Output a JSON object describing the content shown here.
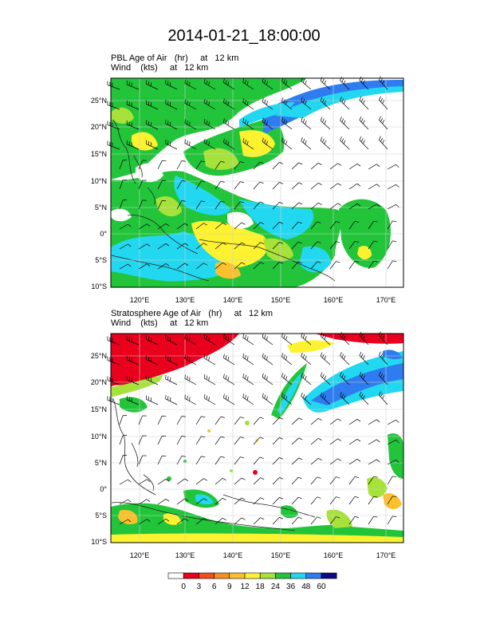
{
  "title": "2014-01-21_18:00:00",
  "panels": [
    {
      "field_label": "PBL Age of Air   (hr)     at   12 km",
      "wind_label": "Wind    (kts)     at   12 km"
    },
    {
      "field_label": "Stratosphere Age of Air   (hr)     at   12 km",
      "wind_label": "Wind    (kts)     at   12 km"
    }
  ],
  "lat_ticks": [
    "25°N",
    "20°N",
    "15°N",
    "10°N",
    "5°N",
    "0°",
    "5°S",
    "10°S"
  ],
  "lon_ticks": [
    "120°E",
    "130°E",
    "140°E",
    "150°E",
    "160°E",
    "170°E"
  ],
  "colorbar": {
    "labels": [
      "0",
      "3",
      "6",
      "9",
      "12",
      "18",
      "24",
      "36",
      "48",
      "60"
    ],
    "colors": [
      "#ffffff",
      "#e8001c",
      "#f24d1a",
      "#f78f1f",
      "#fbc02d",
      "#fdf230",
      "#a6e23a",
      "#22c53a",
      "#22d8f0",
      "#2f7cf0",
      "#0a0a8a"
    ]
  },
  "colors": {
    "green": "#22c53a",
    "light_green": "#a6e23a",
    "yellow": "#fdf230",
    "orange": "#fbc02d",
    "cyan": "#22d8f0",
    "blue": "#2f7cf0",
    "red": "#e8001c"
  }
}
